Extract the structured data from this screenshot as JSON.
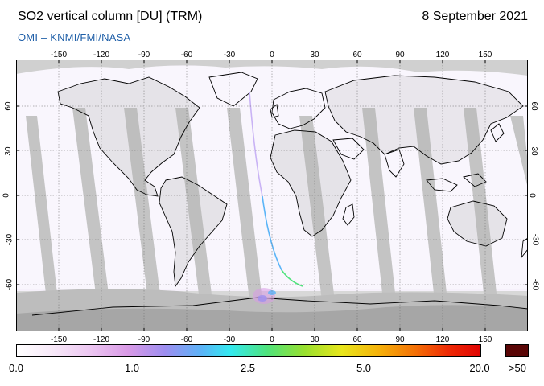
{
  "header": {
    "title": "SO2 vertical column [DU] (TRM)",
    "date": "8 September 2021",
    "credit": "OMI  –  KNMI/FMI/NASA"
  },
  "map": {
    "projection": "equirectangular",
    "lon_range": [
      -180,
      180
    ],
    "lat_range": [
      -90,
      90
    ],
    "lon_ticks": [
      "-150",
      "-120",
      "-90",
      "-60",
      "-30",
      "0",
      "30",
      "60",
      "90",
      "120",
      "150"
    ],
    "lat_ticks_left": [
      "60",
      "30",
      "0",
      "-30",
      "-60"
    ],
    "lat_ticks_right": [
      "60",
      "30",
      "0",
      "-30",
      "-60"
    ],
    "grid": true,
    "colors": {
      "no_data": "#d8d8d8",
      "swath_gap": "#c4c4c4",
      "dark_gap": "#a9a9a9",
      "low_value": "#f6f1fb",
      "coast": "#000000"
    }
  },
  "colorbar": {
    "labels": [
      "0.0",
      "1.0",
      "2.5",
      "5.0",
      "20.0",
      ">50"
    ],
    "overflow_color": "#5a0606",
    "stops": [
      "#ffffff",
      "#f2d7f4",
      "#d99ae6",
      "#9d8ef0",
      "#5ab4f7",
      "#33e9f0",
      "#4fe37c",
      "#98e02f",
      "#e8e61c",
      "#f5b20b",
      "#f46f06",
      "#ee2a05",
      "#e00303"
    ]
  }
}
